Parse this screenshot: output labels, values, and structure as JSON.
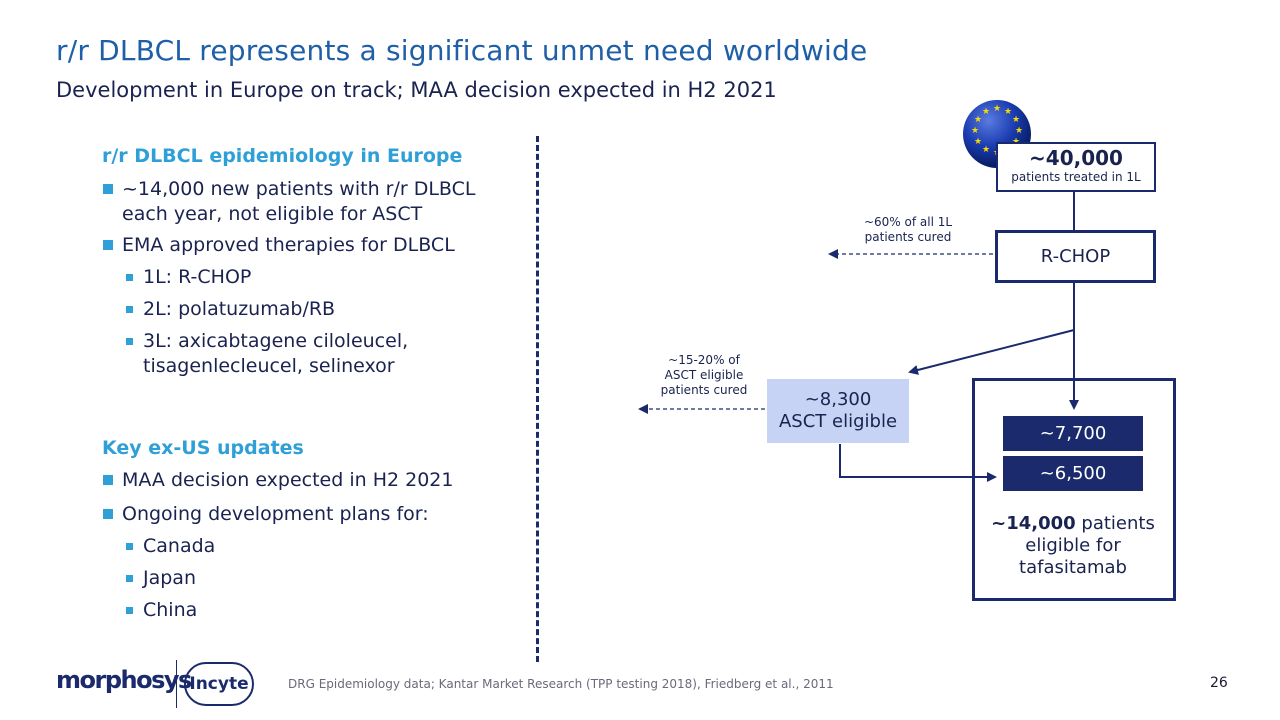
{
  "title": "r/r DLBCL represents a significant unmet need worldwide",
  "subtitle": "Development in Europe on track; MAA decision expected in H2 2021",
  "left": {
    "section1_heading": "r/r DLBCL epidemiology in Europe",
    "bullet1": "~14,000 new patients with r/r DLBCL each year, not eligible for ASCT",
    "bullet2": "EMA approved therapies for DLBCL",
    "sub1": "1L: R-CHOP",
    "sub2": "2L: polatuzumab/RB",
    "sub3": "3L: axicabtagene ciloleucel, tisagenlecleucel, selinexor",
    "section2_heading": "Key ex-US updates",
    "bullet3": "MAA decision expected in H2 2021",
    "bullet4": "Ongoing development plans for:",
    "sub4": "Canada",
    "sub5": "Japan",
    "sub6": "China"
  },
  "flow": {
    "top_value": "~40,000",
    "top_caption": "patients treated in 1L",
    "cured_1l": "~60% of all 1L patients cured",
    "rchop": "R-CHOP",
    "cured_asct": "~15-20% of ASCT eligible patients cured",
    "asct_value": "~8,300",
    "asct_label": "ASCT eligible",
    "box_7700": "~7,700",
    "box_6500": "~6,500",
    "eligible_value": "~14,000",
    "eligible_rest": "patients eligible for tafasitamab"
  },
  "footer": {
    "source": "DRG Epidemiology data; Kantar Market Research (TPP testing 2018), Friedberg et al., 2011",
    "page_number": "26",
    "logo_morphosys": "morphosys",
    "logo_incyte": "Incyte"
  },
  "colors": {
    "title": "#1f5fa8",
    "accent": "#2f9fd8",
    "navy": "#1a2a6c",
    "light_box": "#c6d3f5"
  }
}
